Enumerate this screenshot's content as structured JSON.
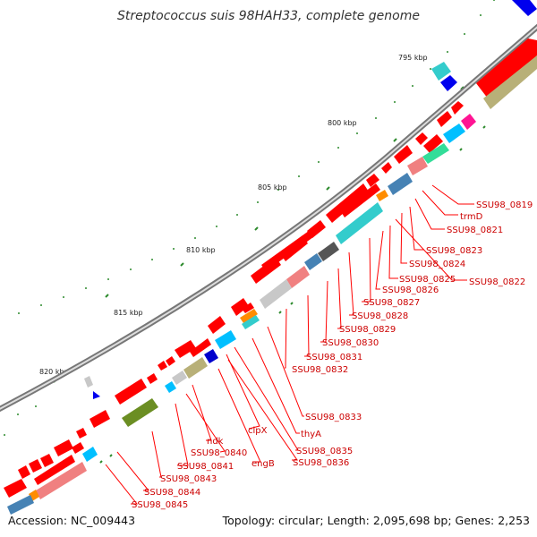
{
  "title": "Streptococcus suis 98HAH33, complete genome",
  "accession": "Accession: NC_009443",
  "summary": "Topology: circular; Length: 2,095,698 bp; Genes: 2,253",
  "scale_labels": [
    "795 kbp",
    "800 kbp",
    "805 kbp",
    "810 kbp",
    "815 kbp",
    "820 kbp"
  ],
  "gene_labels": [
    "SSU98_0819",
    "trmD",
    "SSU98_0821",
    "SSU98_0823",
    "SSU98_0824",
    "SSU98_0822",
    "SSU98_0825",
    "SSU98_0826",
    "SSU98_0827",
    "SSU98_0828",
    "SSU98_0829",
    "SSU98_0830",
    "SSU98_0831",
    "SSU98_0832",
    "SSU98_0833",
    "thyA",
    "clpX",
    "SSU98_0835",
    "engB",
    "SSU98_0836",
    "ndk",
    "SSU98_0840",
    "SSU98_0841",
    "SSU98_0843",
    "SSU98_0844",
    "SSU98_0845"
  ],
  "colors": {
    "forward_cds": "#ff0000",
    "backbone": "#888888",
    "label_line": "#ff0000",
    "label_text": "#cc0000",
    "tick": "#2e8b2e",
    "cog_cyan": "#33cccc",
    "cog_olive": "#b8b078",
    "cog_salmon": "#f08080",
    "cog_steel": "#4682b4"
  }
}
